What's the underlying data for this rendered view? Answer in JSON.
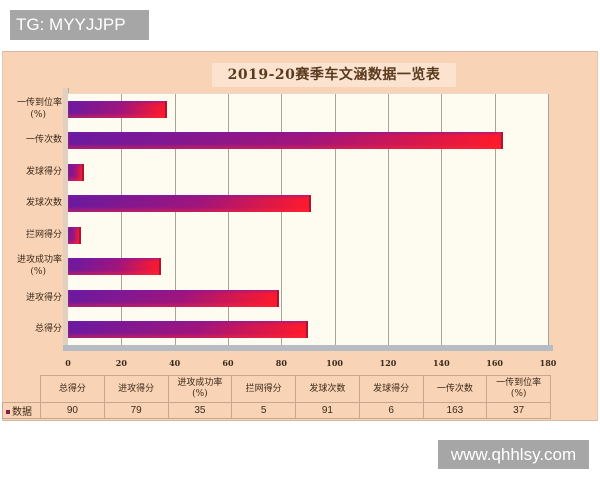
{
  "watermarks": {
    "top": "TG: MYYJJPP",
    "bottom": "www.qhhlsy.com"
  },
  "colors": {
    "frame_bg": "#f9d3b5",
    "plot_bg": "#fefcf0",
    "bar_start": "#6a1aa0",
    "bar_end": "#ff1a2a"
  },
  "chart_data": {
    "type": "bar",
    "orientation": "horizontal",
    "title": "2019-20赛季车文涵数据一览表",
    "xlabel": "",
    "ylabel": "",
    "xlim": [
      0,
      180
    ],
    "grid": true,
    "legend_position": "table-row-header",
    "x_ticks": [
      "0",
      "20",
      "40",
      "60",
      "80",
      "100",
      "120",
      "140",
      "160",
      "180"
    ],
    "categories": [
      "总得分",
      "进攻得分",
      "进攻成功率(%)",
      "拦网得分",
      "发球次数",
      "发球得分",
      "一传次数",
      "一传到位率(%)"
    ],
    "series": [
      {
        "name": "数据",
        "values": [
          90,
          79,
          35,
          5,
          91,
          6,
          163,
          37
        ]
      }
    ]
  },
  "bars_top_to_bottom": [
    {
      "label_line1": "一传到位率",
      "label_line2": "(%)",
      "value": 37
    },
    {
      "label_line1": "一传次数",
      "label_line2": "",
      "value": 163
    },
    {
      "label_line1": "发球得分",
      "label_line2": "",
      "value": 6
    },
    {
      "label_line1": "发球次数",
      "label_line2": "",
      "value": 91
    },
    {
      "label_line1": "拦网得分",
      "label_line2": "",
      "value": 5
    },
    {
      "label_line1": "进攻成功率",
      "label_line2": "(%)",
      "value": 35
    },
    {
      "label_line1": "进攻得分",
      "label_line2": "",
      "value": 79
    },
    {
      "label_line1": "总得分",
      "label_line2": "",
      "value": 90
    }
  ],
  "table": {
    "row_header": "数据",
    "columns": [
      {
        "h1": "总得分",
        "h2": "",
        "value": "90"
      },
      {
        "h1": "进攻得分",
        "h2": "",
        "value": "79"
      },
      {
        "h1": "进攻成功率",
        "h2": "(%)",
        "value": "35"
      },
      {
        "h1": "拦网得分",
        "h2": "",
        "value": "5"
      },
      {
        "h1": "发球次数",
        "h2": "",
        "value": "91"
      },
      {
        "h1": "发球得分",
        "h2": "",
        "value": "6"
      },
      {
        "h1": "一传次数",
        "h2": "",
        "value": "163"
      },
      {
        "h1": "一传到位率",
        "h2": "(%)",
        "value": "37"
      }
    ]
  }
}
